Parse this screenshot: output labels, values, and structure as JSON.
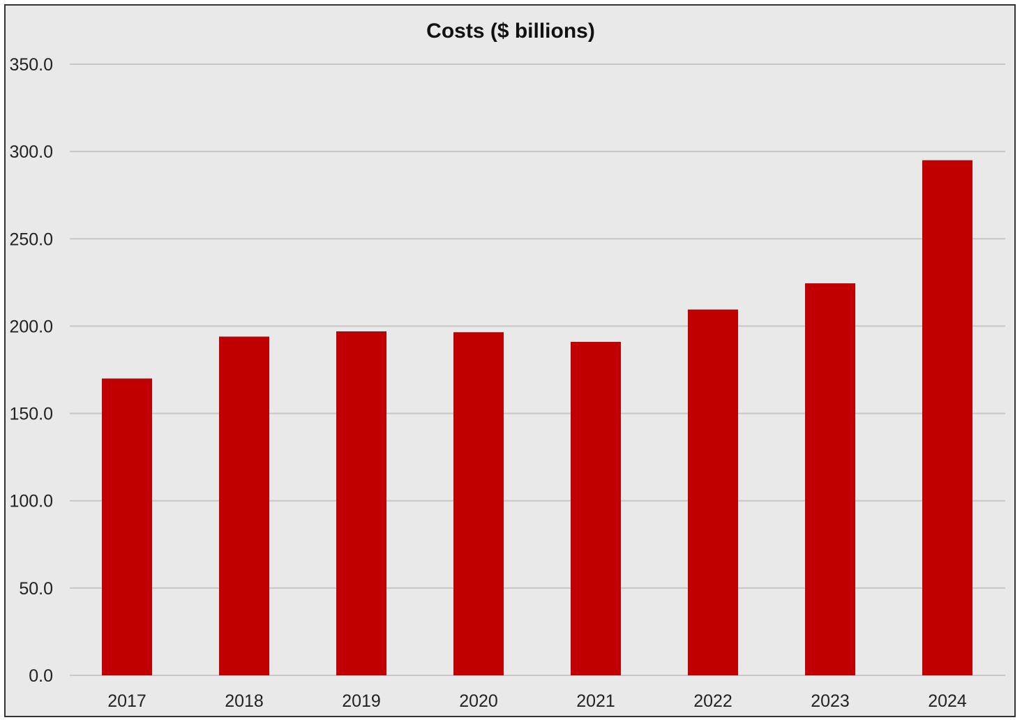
{
  "chart_data": {
    "type": "bar",
    "title": "Costs ($ billions)",
    "xlabel": "",
    "ylabel": "",
    "categories": [
      "2017",
      "2018",
      "2019",
      "2020",
      "2021",
      "2022",
      "2023",
      "2024"
    ],
    "values": [
      170.0,
      194.0,
      197.0,
      196.5,
      191.0,
      209.5,
      224.5,
      295.0
    ],
    "ylim": [
      0,
      350
    ],
    "ytick_values": [
      0,
      50,
      100,
      150,
      200,
      250,
      300,
      350
    ],
    "ytick_labels": [
      "0.0",
      "50.0",
      "100.0",
      "150.0",
      "200.0",
      "250.0",
      "300.0",
      "350.0"
    ],
    "grid": true,
    "legend": "none",
    "bar_color": "#c00000",
    "background_color": "#e9e9e9"
  }
}
